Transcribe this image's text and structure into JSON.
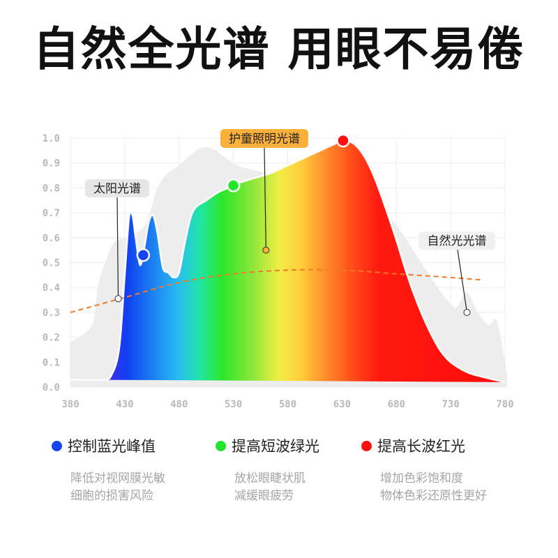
{
  "title": "自然全光谱 用眼不易倦",
  "chart_data": {
    "type": "area",
    "x": [
      380,
      430,
      480,
      530,
      580,
      630,
      680,
      730,
      780
    ],
    "x_ticks": [
      "380",
      "430",
      "480",
      "530",
      "580",
      "630",
      "680",
      "730",
      "780"
    ],
    "y_ticks": [
      "0.0",
      "0.1",
      "0.2",
      "0.3",
      "0.4",
      "0.5",
      "0.6",
      "0.7",
      "0.8",
      "0.9",
      "1.0"
    ],
    "xlim": [
      380,
      780
    ],
    "ylim": [
      0,
      1.0
    ],
    "grid": true,
    "series": [
      {
        "name": "护童照明光谱",
        "style": "rainbow-gradient-fill",
        "points": [
          [
            380,
            0.03
          ],
          [
            410,
            0.03
          ],
          [
            418,
            0.05
          ],
          [
            425,
            0.16
          ],
          [
            430,
            0.45
          ],
          [
            434,
            0.68
          ],
          [
            437,
            0.69
          ],
          [
            440,
            0.6
          ],
          [
            444,
            0.49
          ],
          [
            448,
            0.56
          ],
          [
            452,
            0.66
          ],
          [
            456,
            0.69
          ],
          [
            460,
            0.62
          ],
          [
            465,
            0.48
          ],
          [
            470,
            0.46
          ],
          [
            475,
            0.44
          ],
          [
            480,
            0.46
          ],
          [
            485,
            0.57
          ],
          [
            490,
            0.67
          ],
          [
            495,
            0.72
          ],
          [
            505,
            0.75
          ],
          [
            515,
            0.78
          ],
          [
            525,
            0.8
          ],
          [
            535,
            0.82
          ],
          [
            550,
            0.84
          ],
          [
            565,
            0.86
          ],
          [
            575,
            0.88
          ],
          [
            590,
            0.91
          ],
          [
            605,
            0.94
          ],
          [
            615,
            0.96
          ],
          [
            625,
            0.98
          ],
          [
            630,
            0.99
          ],
          [
            640,
            0.98
          ],
          [
            650,
            0.93
          ],
          [
            660,
            0.84
          ],
          [
            670,
            0.72
          ],
          [
            680,
            0.59
          ],
          [
            690,
            0.45
          ],
          [
            700,
            0.33
          ],
          [
            710,
            0.23
          ],
          [
            720,
            0.15
          ],
          [
            730,
            0.1
          ],
          [
            745,
            0.06
          ],
          [
            760,
            0.04
          ],
          [
            780,
            0.02
          ]
        ]
      },
      {
        "name": "太阳光谱",
        "style": "dashed-orange",
        "points": [
          [
            380,
            0.3
          ],
          [
            430,
            0.36
          ],
          [
            480,
            0.42
          ],
          [
            530,
            0.455
          ],
          [
            580,
            0.47
          ],
          [
            630,
            0.47
          ],
          [
            680,
            0.455
          ],
          [
            730,
            0.44
          ],
          [
            760,
            0.43
          ]
        ]
      },
      {
        "name": "自然光光谱",
        "style": "grey-fill",
        "points": [
          [
            380,
            0.18
          ],
          [
            400,
            0.25
          ],
          [
            405,
            0.4
          ],
          [
            412,
            0.5
          ],
          [
            420,
            0.58
          ],
          [
            430,
            0.6
          ],
          [
            440,
            0.62
          ],
          [
            450,
            0.66
          ],
          [
            460,
            0.8
          ],
          [
            470,
            0.86
          ],
          [
            480,
            0.89
          ],
          [
            485,
            0.91
          ],
          [
            490,
            0.93
          ],
          [
            500,
            0.96
          ],
          [
            510,
            0.96
          ],
          [
            520,
            0.93
          ],
          [
            530,
            0.9
          ],
          [
            540,
            0.88
          ],
          [
            550,
            0.87
          ],
          [
            560,
            0.86
          ],
          [
            580,
            0.85
          ],
          [
            600,
            0.84
          ],
          [
            620,
            0.82
          ],
          [
            640,
            0.8
          ],
          [
            660,
            0.75
          ],
          [
            680,
            0.65
          ],
          [
            700,
            0.52
          ],
          [
            715,
            0.42
          ],
          [
            725,
            0.36
          ],
          [
            735,
            0.32
          ],
          [
            745,
            0.38
          ],
          [
            755,
            0.3
          ],
          [
            765,
            0.25
          ],
          [
            772,
            0.27
          ],
          [
            778,
            0.15
          ],
          [
            782,
            0.05
          ],
          [
            782,
            0.0
          ],
          [
            380,
            0.0
          ]
        ]
      }
    ],
    "markers": [
      {
        "x": 447,
        "y": 0.53,
        "color": "#1646f0"
      },
      {
        "x": 530,
        "y": 0.81,
        "color": "#22e62a"
      },
      {
        "x": 631,
        "y": 0.99,
        "color": "#ff1010"
      }
    ],
    "annotations": [
      {
        "text": "护童照明光谱",
        "anchor": [
          560,
          0.55
        ],
        "bg": "#fbb03b"
      },
      {
        "text": "太阳光谱",
        "anchor": [
          424,
          0.355
        ],
        "bg": "#e6e6e6"
      },
      {
        "text": "自然光光谱",
        "anchor": [
          745,
          0.3
        ],
        "bg": "#f0f0f0"
      }
    ]
  },
  "legend": [
    {
      "title": "控制蓝光峰值",
      "color": "#1646f0",
      "desc": [
        "降低对视网膜光敏",
        "细胞的损害风险"
      ]
    },
    {
      "title": "提高短波绿光",
      "color": "#22e62a",
      "desc": [
        "放松眼睫状肌",
        "减缓眼疲劳"
      ]
    },
    {
      "title": "提高长波红光",
      "color": "#ff1010",
      "desc": [
        "增加色彩饱和度",
        "物体色彩还原性更好"
      ]
    }
  ]
}
